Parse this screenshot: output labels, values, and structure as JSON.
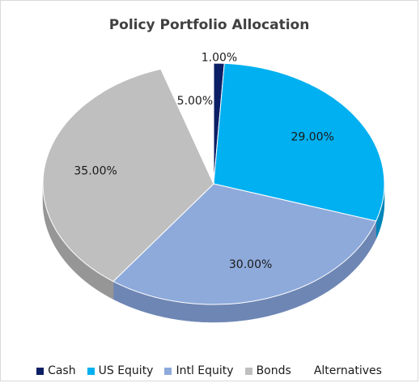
{
  "chart_data": {
    "type": "pie",
    "title": "Policy Portfolio Allocation",
    "legend_position": "bottom",
    "slices": [
      {
        "name": "Cash",
        "value": 1.0,
        "label": "1.00%",
        "color": "#0b1f66",
        "side": "#071444"
      },
      {
        "name": "US Equity",
        "value": 29.0,
        "label": "29.00%",
        "color": "#00b0f0",
        "side": "#0085b8"
      },
      {
        "name": "Intl Equity",
        "value": 30.0,
        "label": "30.00%",
        "color": "#8eaadb",
        "side": "#6e86b4"
      },
      {
        "name": "Bonds",
        "value": 35.0,
        "label": "35.00%",
        "color": "#bfbfbf",
        "side": "#969696"
      },
      {
        "name": "Alternatives",
        "value": 5.0,
        "label": "5.00%",
        "color": "#ffffff",
        "side": "#e8e8e8"
      }
    ]
  }
}
